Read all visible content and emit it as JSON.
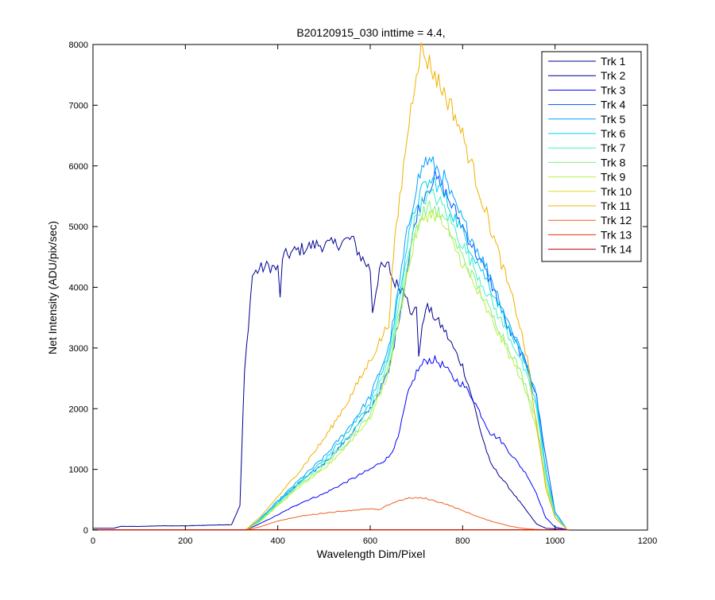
{
  "chart_data": {
    "type": "line",
    "title": "B20120915_030 inttime = 4.4,",
    "xlabel": "Wavelength Dim/Pixel",
    "ylabel": "Net Intensity (ADU/pix/sec)",
    "xlim": [
      0,
      1200
    ],
    "ylim": [
      0,
      8000
    ],
    "xticks": [
      0,
      200,
      400,
      600,
      800,
      1000,
      1200
    ],
    "yticks": [
      0,
      1000,
      2000,
      3000,
      4000,
      5000,
      6000,
      7000,
      8000
    ],
    "grid": false,
    "legend_position": "top-right",
    "series": [
      {
        "name": "Trk 1",
        "color": "#00008F",
        "x": [
          0,
          300,
          1030
        ],
        "y": [
          0,
          0,
          0
        ]
      },
      {
        "name": "Trk 2",
        "color": "#00008F",
        "x": [
          0,
          45,
          60,
          100,
          150,
          200,
          250,
          300,
          318,
          328,
          345,
          360,
          380,
          400,
          405,
          410,
          440,
          480,
          520,
          560,
          580,
          600,
          605,
          620,
          640,
          650,
          680,
          690,
          700,
          705,
          720,
          740,
          760,
          780,
          800,
          820,
          840,
          860,
          880,
          900,
          920,
          940,
          960,
          980,
          1000,
          1020
        ],
        "y": [
          30,
          30,
          60,
          60,
          70,
          70,
          80,
          90,
          400,
          2600,
          4200,
          4300,
          4350,
          4300,
          3800,
          4500,
          4600,
          4700,
          4700,
          4800,
          4500,
          4300,
          3600,
          4300,
          4350,
          4100,
          3900,
          3500,
          3700,
          2900,
          3700,
          3500,
          3300,
          3000,
          2700,
          2200,
          1600,
          1100,
          900,
          700,
          500,
          300,
          100,
          30,
          20,
          10
        ]
      },
      {
        "name": "Trk 3",
        "color": "#0000FF",
        "x": [
          0,
          330,
          360,
          400,
          450,
          500,
          550,
          600,
          640,
          660,
          680,
          700,
          720,
          740,
          760,
          780,
          800,
          820,
          840,
          860,
          880,
          900,
          920,
          940,
          960,
          980,
          1000,
          1025
        ],
        "y": [
          0,
          0,
          100,
          250,
          450,
          600,
          800,
          1000,
          1200,
          1500,
          2200,
          2600,
          2800,
          2800,
          2700,
          2500,
          2400,
          2200,
          1900,
          1600,
          1500,
          1300,
          1100,
          900,
          600,
          200,
          50,
          10
        ]
      },
      {
        "name": "Trk 4",
        "color": "#0050FF",
        "x": [
          0,
          330,
          360,
          400,
          450,
          500,
          550,
          600,
          640,
          660,
          680,
          700,
          720,
          740,
          760,
          780,
          800,
          820,
          840,
          860,
          880,
          900,
          920,
          940,
          960,
          980,
          1000,
          1025
        ],
        "y": [
          0,
          0,
          150,
          450,
          800,
          1100,
          1500,
          2000,
          2600,
          3400,
          4300,
          5200,
          5600,
          5800,
          5600,
          5300,
          5000,
          4700,
          4400,
          4100,
          3700,
          3300,
          3000,
          2700,
          2200,
          1200,
          300,
          20
        ]
      },
      {
        "name": "Trk 5",
        "color": "#00A0FF",
        "x": [
          0,
          330,
          360,
          400,
          450,
          500,
          550,
          600,
          640,
          660,
          680,
          700,
          720,
          740,
          760,
          780,
          800,
          820,
          840,
          860,
          880,
          900,
          920,
          940,
          960,
          980,
          1000,
          1025
        ],
        "y": [
          0,
          0,
          170,
          480,
          850,
          1200,
          1650,
          2200,
          3000,
          3900,
          4900,
          5700,
          6100,
          6000,
          5800,
          5400,
          5100,
          4800,
          4500,
          4200,
          3800,
          3400,
          3100,
          2700,
          2200,
          1000,
          300,
          20
        ]
      },
      {
        "name": "Trk 6",
        "color": "#00D0E8",
        "x": [
          0,
          330,
          360,
          400,
          450,
          500,
          550,
          600,
          640,
          660,
          680,
          700,
          720,
          740,
          760,
          780,
          800,
          820,
          840,
          860,
          880,
          900,
          920,
          940,
          960,
          980,
          1000,
          1025
        ],
        "y": [
          0,
          0,
          160,
          460,
          820,
          1150,
          1600,
          2100,
          2900,
          3800,
          4700,
          5400,
          5700,
          5750,
          5500,
          5200,
          4900,
          4600,
          4300,
          4000,
          3700,
          3300,
          3000,
          2600,
          2100,
          1000,
          250,
          20
        ]
      },
      {
        "name": "Trk 7",
        "color": "#40F0C0",
        "x": [
          0,
          330,
          360,
          400,
          450,
          500,
          550,
          600,
          640,
          660,
          680,
          700,
          720,
          740,
          760,
          780,
          800,
          820,
          840,
          860,
          880,
          900,
          920,
          940,
          960,
          980,
          1000,
          1025
        ],
        "y": [
          0,
          0,
          150,
          440,
          790,
          1100,
          1500,
          2000,
          2800,
          3600,
          4500,
          5200,
          5500,
          5500,
          5300,
          5000,
          4700,
          4400,
          4100,
          3800,
          3500,
          3200,
          2900,
          2500,
          2000,
          900,
          250,
          20
        ]
      },
      {
        "name": "Trk 8",
        "color": "#80F080",
        "x": [
          0,
          330,
          360,
          400,
          450,
          500,
          550,
          600,
          640,
          660,
          680,
          700,
          720,
          740,
          760,
          780,
          800,
          820,
          840,
          860,
          880,
          900,
          920,
          940,
          960,
          980,
          1000,
          1025
        ],
        "y": [
          0,
          0,
          140,
          420,
          760,
          1050,
          1450,
          1900,
          2700,
          3500,
          4300,
          5000,
          5300,
          5300,
          5100,
          4800,
          4500,
          4200,
          3900,
          3600,
          3300,
          3000,
          2700,
          2300,
          1800,
          800,
          200,
          20
        ]
      },
      {
        "name": "Trk 9",
        "color": "#B8F040",
        "x": [
          0,
          330,
          360,
          400,
          450,
          500,
          550,
          600,
          640,
          660,
          680,
          700,
          720,
          740,
          760,
          780,
          800,
          820,
          840,
          860,
          880,
          900,
          920,
          940,
          960,
          980,
          1000,
          1025
        ],
        "y": [
          0,
          0,
          130,
          400,
          730,
          1000,
          1400,
          1850,
          2600,
          3400,
          4200,
          4900,
          5200,
          5200,
          5000,
          4700,
          4400,
          4100,
          3800,
          3500,
          3200,
          2900,
          2600,
          2200,
          1700,
          750,
          200,
          20
        ]
      },
      {
        "name": "Trk 10",
        "color": "#E0E020",
        "x": [
          0,
          1030
        ],
        "y": [
          0,
          0
        ]
      },
      {
        "name": "Trk 11",
        "color": "#F0B000",
        "x": [
          0,
          330,
          360,
          400,
          450,
          500,
          550,
          600,
          640,
          650,
          660,
          680,
          700,
          710,
          720,
          740,
          760,
          780,
          800,
          820,
          840,
          860,
          880,
          900,
          920,
          940,
          960,
          980,
          1000,
          1025
        ],
        "y": [
          0,
          0,
          200,
          550,
          1000,
          1500,
          2100,
          2800,
          3400,
          4500,
          5200,
          6500,
          7600,
          7900,
          7800,
          7500,
          7200,
          6900,
          6500,
          6000,
          5500,
          5000,
          4500,
          4000,
          3500,
          2800,
          1700,
          700,
          200,
          20
        ]
      },
      {
        "name": "Trk 12",
        "color": "#F06020",
        "x": [
          0,
          330,
          360,
          400,
          450,
          500,
          550,
          600,
          620,
          640,
          660,
          680,
          700,
          720,
          740,
          760,
          780,
          800,
          820,
          840,
          860,
          880,
          900,
          920,
          940,
          960,
          980,
          1000
        ],
        "y": [
          0,
          0,
          50,
          150,
          230,
          280,
          320,
          350,
          330,
          420,
          480,
          520,
          530,
          520,
          480,
          440,
          380,
          320,
          260,
          200,
          150,
          110,
          70,
          40,
          20,
          10,
          5,
          0
        ]
      },
      {
        "name": "Trk 13",
        "color": "#E03000",
        "x": [
          0,
          1030
        ],
        "y": [
          5,
          5
        ]
      },
      {
        "name": "Trk 14",
        "color": "#C00000",
        "x": [
          0,
          1030
        ],
        "y": [
          3,
          3
        ]
      }
    ]
  }
}
